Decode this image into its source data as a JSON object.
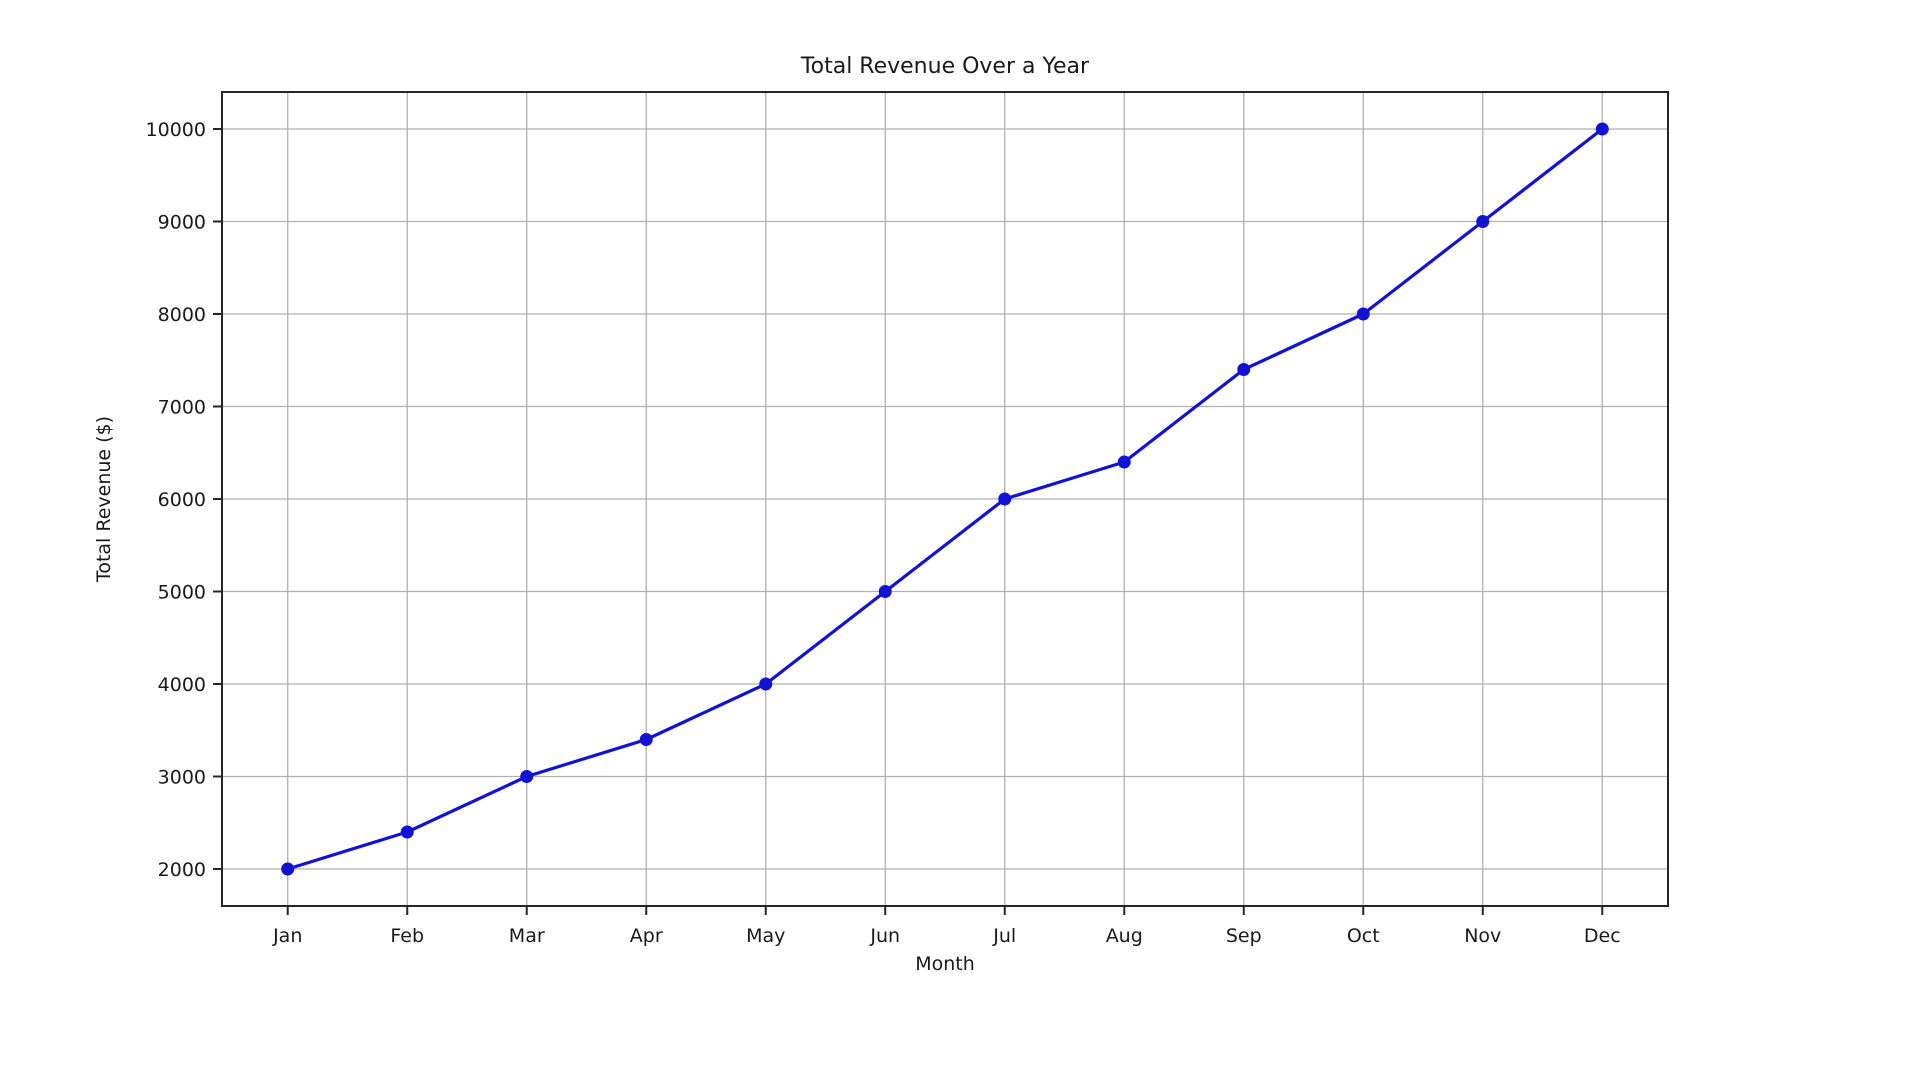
{
  "page": {
    "background": "#ffffff"
  },
  "chart_data": {
    "type": "line",
    "title": "Total Revenue Over a Year",
    "xlabel": "Month",
    "ylabel": "Total Revenue ($)",
    "categories": [
      "Jan",
      "Feb",
      "Mar",
      "Apr",
      "May",
      "Jun",
      "Jul",
      "Aug",
      "Sep",
      "Oct",
      "Nov",
      "Dec"
    ],
    "series": [
      {
        "name": "Total Revenue",
        "values": [
          2000,
          2400,
          3000,
          3400,
          4000,
          5000,
          6000,
          6400,
          7400,
          8000,
          9000,
          10000
        ]
      }
    ],
    "yticks": [
      2000,
      3000,
      4000,
      5000,
      6000,
      7000,
      8000,
      9000,
      10000
    ],
    "ylim": [
      1600,
      10400
    ],
    "x_margin_units": 0.55,
    "grid": true,
    "legend_position": "none",
    "line_color": "#1212d2",
    "marker": "circle",
    "marker_color": "#1212d2",
    "grid_color": "#b0b0b0",
    "spine_color": "#262626",
    "text_color": "#1a1a1a",
    "plot_background": "#ffffff"
  }
}
